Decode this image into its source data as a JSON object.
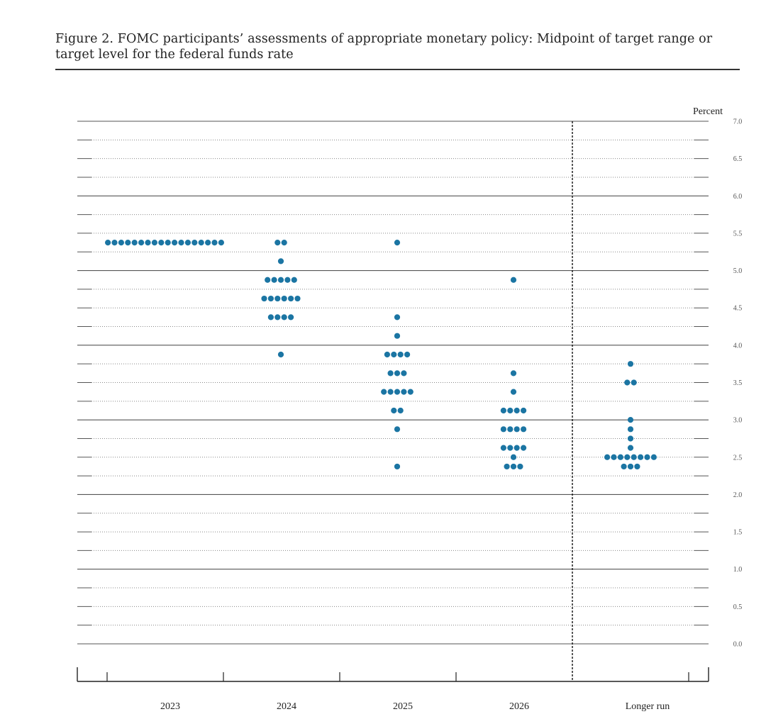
{
  "figure": {
    "caption": "Figure 2.  FOMC participants’ assessments of appropriate monetary policy: Midpoint of target range or target level for the federal funds rate"
  },
  "chart_data": {
    "type": "scatter",
    "subtype": "dot-plot",
    "ylabel": "Percent",
    "ylim": [
      0.0,
      7.0
    ],
    "yticks": [
      "0.0",
      "0.5",
      "1.0",
      "1.5",
      "2.0",
      "2.5",
      "3.0",
      "3.5",
      "4.0",
      "4.5",
      "5.0",
      "5.5",
      "6.0",
      "6.5",
      "7.0"
    ],
    "categories": [
      "2023",
      "2024",
      "2025",
      "2026",
      "Longer run"
    ],
    "grid": true,
    "dot_color": "#1b75a3",
    "series": [
      {
        "category": "2023",
        "points": [
          {
            "y": 5.375,
            "count": 18
          }
        ]
      },
      {
        "category": "2024",
        "points": [
          {
            "y": 5.375,
            "count": 2
          },
          {
            "y": 5.125,
            "count": 1
          },
          {
            "y": 4.875,
            "count": 5
          },
          {
            "y": 4.625,
            "count": 6
          },
          {
            "y": 4.375,
            "count": 4
          },
          {
            "y": 3.875,
            "count": 1
          }
        ]
      },
      {
        "category": "2025",
        "points": [
          {
            "y": 5.375,
            "count": 1
          },
          {
            "y": 4.375,
            "count": 1
          },
          {
            "y": 4.125,
            "count": 1
          },
          {
            "y": 3.875,
            "count": 4
          },
          {
            "y": 3.625,
            "count": 3
          },
          {
            "y": 3.375,
            "count": 5
          },
          {
            "y": 3.125,
            "count": 2
          },
          {
            "y": 2.875,
            "count": 1
          },
          {
            "y": 2.375,
            "count": 1
          }
        ]
      },
      {
        "category": "2026",
        "points": [
          {
            "y": 4.875,
            "count": 1
          },
          {
            "y": 3.625,
            "count": 1
          },
          {
            "y": 3.375,
            "count": 1
          },
          {
            "y": 3.125,
            "count": 4
          },
          {
            "y": 2.875,
            "count": 4
          },
          {
            "y": 2.625,
            "count": 4
          },
          {
            "y": 2.5,
            "count": 1
          },
          {
            "y": 2.375,
            "count": 3
          }
        ]
      },
      {
        "category": "Longer run",
        "points": [
          {
            "y": 3.75,
            "count": 1
          },
          {
            "y": 3.5,
            "count": 2
          },
          {
            "y": 3.0,
            "count": 1
          },
          {
            "y": 2.875,
            "count": 1
          },
          {
            "y": 2.75,
            "count": 1
          },
          {
            "y": 2.625,
            "count": 1
          },
          {
            "y": 2.5,
            "count": 8
          },
          {
            "y": 2.375,
            "count": 3
          }
        ]
      }
    ]
  }
}
